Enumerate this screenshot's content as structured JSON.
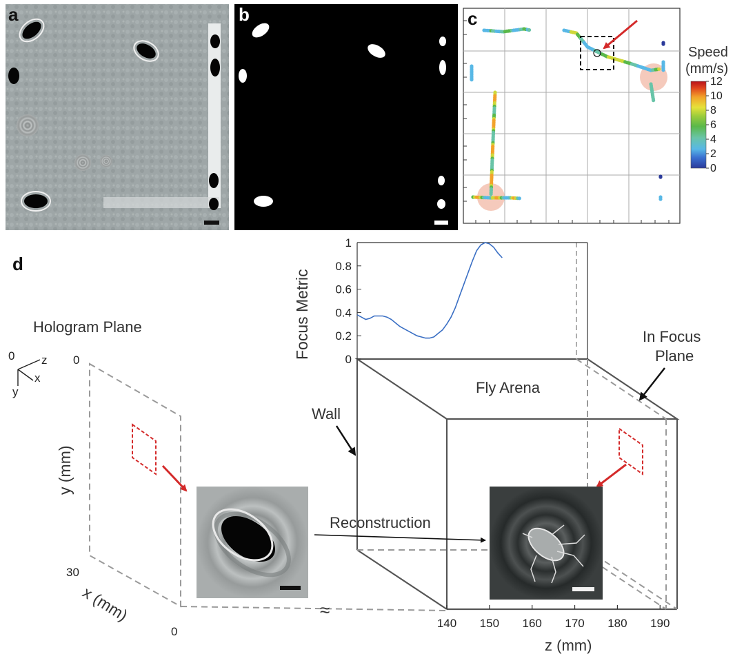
{
  "panels": {
    "a": {
      "letter": "a"
    },
    "b": {
      "letter": "b"
    },
    "c": {
      "letter": "c"
    },
    "d": {
      "letter": "d"
    }
  },
  "colorbar": {
    "title_line1": "Speed",
    "title_line2": "(mm/s)",
    "ticks": [
      "12",
      "10",
      "8",
      "6",
      "4",
      "2",
      "0"
    ],
    "min": 0,
    "max": 12
  },
  "schematic": {
    "hologram_plane": "Hologram Plane",
    "fly_arena": "Fly Arena",
    "in_focus_line1": "In Focus",
    "in_focus_line2": "Plane",
    "wall": "Wall",
    "reconstruction": "Reconstruction",
    "y_axis_label": "y (mm)",
    "x_axis_label": "x (mm)",
    "z_axis_label": "z (mm)",
    "y_top": "0",
    "y_bottom": "30",
    "x_zero": "0",
    "axes_origin": "0",
    "axes_z": "z",
    "axes_x": "x",
    "axes_y": "y",
    "z_ticks": [
      "140",
      "150",
      "160",
      "170",
      "180",
      "190"
    ],
    "break_symbol": "≈"
  },
  "chart_data": {
    "type": "line",
    "title": "",
    "xlabel": "z (mm)",
    "ylabel": "Focus Metric",
    "xlim": [
      140,
      194
    ],
    "ylim": [
      0,
      1
    ],
    "y_ticks": [
      "1",
      "0.8",
      "0.6",
      "0.4",
      "0.2",
      "0"
    ],
    "y_tick_values": [
      1,
      0.8,
      0.6,
      0.4,
      0.2,
      0
    ],
    "x_ticks": [
      140,
      150,
      160,
      170,
      180,
      190
    ],
    "series": [
      {
        "color": "#3a6fc4",
        "x": [
          140,
          141,
          142,
          143,
          144,
          145,
          146,
          147,
          148,
          149,
          150,
          151,
          152,
          153,
          154,
          155,
          156,
          157,
          158,
          159,
          160,
          161,
          162,
          163,
          164,
          165,
          166,
          167,
          168,
          169,
          170,
          171,
          172,
          173,
          174
        ],
        "y": [
          0.38,
          0.36,
          0.34,
          0.35,
          0.37,
          0.37,
          0.37,
          0.36,
          0.34,
          0.31,
          0.28,
          0.26,
          0.24,
          0.22,
          0.2,
          0.19,
          0.18,
          0.18,
          0.19,
          0.22,
          0.25,
          0.3,
          0.36,
          0.44,
          0.54,
          0.64,
          0.74,
          0.84,
          0.93,
          0.98,
          1.0,
          0.99,
          0.96,
          0.91,
          0.87
        ]
      }
    ],
    "peak_z": 170
  }
}
